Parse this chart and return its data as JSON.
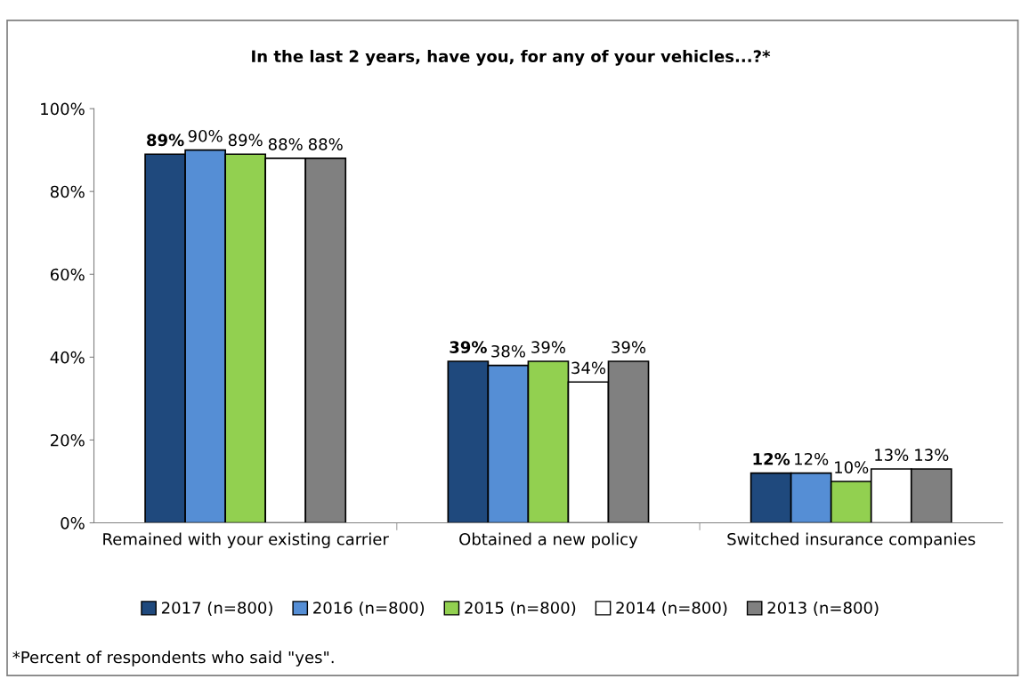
{
  "chart_data": {
    "type": "bar",
    "title": "In the last 2 years, have you, for any of your vehicles...?*",
    "categories": [
      "Remained with your existing carrier",
      "Obtained a new policy",
      "Switched insurance companies"
    ],
    "series": [
      {
        "name": "2017 (n=800)",
        "color": "#1f497d",
        "values": [
          89,
          39,
          12
        ],
        "value_labels": [
          "89%",
          "39%",
          "12%"
        ]
      },
      {
        "name": "2016 (n=800)",
        "color": "#558ed5",
        "values": [
          90,
          38,
          12
        ],
        "value_labels": [
          "90%",
          "38%",
          "12%"
        ]
      },
      {
        "name": "2015 (n=800)",
        "color": "#92d050",
        "values": [
          89,
          39,
          10
        ],
        "value_labels": [
          "89%",
          "39%",
          "10%"
        ]
      },
      {
        "name": "2014 (n=800)",
        "color": "#ffffff",
        "values": [
          88,
          34,
          13
        ],
        "value_labels": [
          "88%",
          "34%",
          "13%"
        ]
      },
      {
        "name": "2013 (n=800)",
        "color": "#808080",
        "values": [
          88,
          39,
          13
        ],
        "value_labels": [
          "88%",
          "39%",
          "13%"
        ]
      }
    ],
    "ylim": [
      0,
      100
    ],
    "yticks": [
      {
        "value": 0,
        "label": "0%"
      },
      {
        "value": 20,
        "label": "20%"
      },
      {
        "value": 40,
        "label": "40%"
      },
      {
        "value": 60,
        "label": "60%"
      },
      {
        "value": 80,
        "label": "80%"
      },
      {
        "value": 100,
        "label": "100%"
      }
    ],
    "grid": false,
    "legend": "bottom",
    "annotations": [
      "*Percent of respondents who said \"yes\"."
    ]
  }
}
